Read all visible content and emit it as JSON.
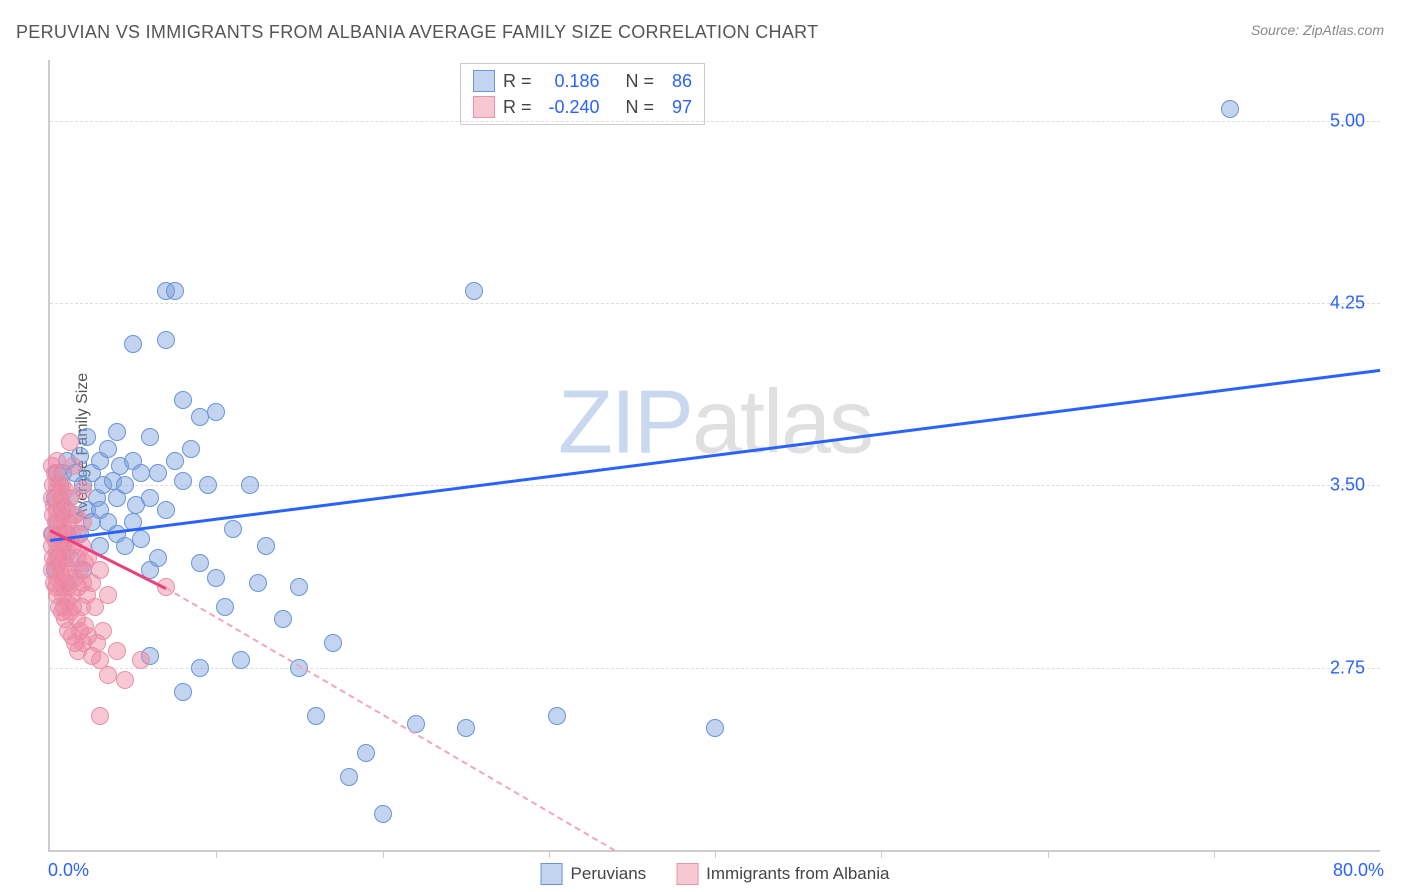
{
  "title": "PERUVIAN VS IMMIGRANTS FROM ALBANIA AVERAGE FAMILY SIZE CORRELATION CHART",
  "source": "Source: ZipAtlas.com",
  "ylabel": "Average Family Size",
  "watermark_zip": "ZIP",
  "watermark_atlas": "atlas",
  "chart": {
    "type": "scatter",
    "xlim": [
      0,
      80
    ],
    "ylim": [
      2.0,
      5.25
    ],
    "xmin_label": "0.0%",
    "xmax_label": "80.0%",
    "yticks": [
      2.75,
      3.5,
      4.25,
      5.0
    ],
    "ytick_labels": [
      "2.75",
      "3.50",
      "4.25",
      "5.00"
    ],
    "xtick_positions": [
      10,
      20,
      30,
      40,
      50,
      60,
      70
    ],
    "grid_color": "#dddddd",
    "axis_color": "#cccccc",
    "background_color": "#ffffff",
    "tick_label_color": "#2962ff",
    "title_color": "#555555"
  },
  "series": [
    {
      "name": "Peruvians",
      "fill_color": "rgba(120,160,220,0.45)",
      "stroke_color": "#6a95d8",
      "marker_radius": 8,
      "R_label": "R =",
      "R": "0.186",
      "N_label": "N =",
      "N": "86",
      "trend": {
        "x1": 0,
        "y1": 3.28,
        "x2": 80,
        "y2": 3.98,
        "color": "#2962ff",
        "width": 3,
        "dash": false
      },
      "points": [
        [
          0.2,
          3.3
        ],
        [
          0.3,
          3.15
        ],
        [
          0.3,
          3.45
        ],
        [
          0.4,
          3.55
        ],
        [
          0.5,
          3.2
        ],
        [
          0.5,
          3.35
        ],
        [
          0.6,
          3.5
        ],
        [
          0.7,
          3.4
        ],
        [
          0.8,
          3.25
        ],
        [
          0.8,
          3.55
        ],
        [
          1.0,
          3.1
        ],
        [
          1.0,
          3.6
        ],
        [
          1.0,
          3.3
        ],
        [
          1.2,
          3.45
        ],
        [
          1.2,
          3.2
        ],
        [
          1.5,
          3.55
        ],
        [
          1.5,
          3.38
        ],
        [
          1.8,
          3.3
        ],
        [
          1.8,
          3.62
        ],
        [
          2.0,
          3.5
        ],
        [
          2.0,
          3.15
        ],
        [
          2.2,
          3.4
        ],
        [
          2.2,
          3.7
        ],
        [
          2.5,
          3.55
        ],
        [
          2.5,
          3.35
        ],
        [
          2.8,
          3.45
        ],
        [
          3.0,
          3.25
        ],
        [
          3.0,
          3.6
        ],
        [
          3.0,
          3.4
        ],
        [
          3.2,
          3.5
        ],
        [
          3.5,
          3.65
        ],
        [
          3.5,
          3.35
        ],
        [
          3.8,
          3.52
        ],
        [
          4.0,
          3.3
        ],
        [
          4.0,
          3.72
        ],
        [
          4.0,
          3.45
        ],
        [
          4.2,
          3.58
        ],
        [
          4.5,
          3.25
        ],
        [
          4.5,
          3.5
        ],
        [
          5.0,
          3.35
        ],
        [
          5.0,
          3.6
        ],
        [
          5.0,
          4.08
        ],
        [
          5.2,
          3.42
        ],
        [
          5.5,
          3.28
        ],
        [
          5.5,
          3.55
        ],
        [
          6.0,
          3.15
        ],
        [
          6.0,
          3.45
        ],
        [
          6.0,
          3.7
        ],
        [
          6.5,
          3.2
        ],
        [
          6.5,
          3.55
        ],
        [
          7.0,
          4.1
        ],
        [
          7.0,
          3.4
        ],
        [
          7.5,
          3.6
        ],
        [
          8.0,
          3.52
        ],
        [
          8.0,
          3.85
        ],
        [
          8.5,
          3.65
        ],
        [
          9.0,
          3.18
        ],
        [
          9.0,
          3.78
        ],
        [
          9.5,
          3.5
        ],
        [
          10.0,
          3.8
        ],
        [
          10.0,
          3.12
        ],
        [
          10.5,
          3.0
        ],
        [
          7.0,
          4.3
        ],
        [
          7.5,
          4.3
        ],
        [
          11.0,
          3.32
        ],
        [
          12.0,
          3.5
        ],
        [
          12.5,
          3.1
        ],
        [
          13.0,
          3.25
        ],
        [
          14.0,
          2.95
        ],
        [
          15.0,
          2.75
        ],
        [
          16.0,
          2.55
        ],
        [
          17.0,
          2.85
        ],
        [
          8.0,
          2.65
        ],
        [
          9.0,
          2.75
        ],
        [
          6.0,
          2.8
        ],
        [
          11.5,
          2.78
        ],
        [
          15.0,
          3.08
        ],
        [
          18.0,
          2.3
        ],
        [
          19.0,
          2.4
        ],
        [
          20.0,
          2.15
        ],
        [
          22.0,
          2.52
        ],
        [
          25.0,
          2.5
        ],
        [
          25.5,
          4.3
        ],
        [
          30.5,
          2.55
        ],
        [
          40.0,
          2.5
        ],
        [
          71.0,
          5.05
        ]
      ]
    },
    {
      "name": "Immigrants from Albania",
      "fill_color": "rgba(240,130,160,0.45)",
      "stroke_color": "#e892ab",
      "marker_radius": 8,
      "R_label": "R =",
      "R": "-0.240",
      "N_label": "N =",
      "N": "97",
      "trend_solid": {
        "x1": 0,
        "y1": 3.32,
        "x2": 7.0,
        "y2": 3.08,
        "color": "#ec407a",
        "width": 3,
        "dash": false
      },
      "trend_dash": {
        "x1": 7.0,
        "y1": 3.08,
        "x2": 34.0,
        "y2": 2.0,
        "color": "#f4a6bb",
        "width": 2,
        "dash": true
      },
      "points": [
        [
          0.1,
          3.3
        ],
        [
          0.1,
          3.15
        ],
        [
          0.15,
          3.45
        ],
        [
          0.15,
          3.25
        ],
        [
          0.2,
          3.5
        ],
        [
          0.2,
          3.2
        ],
        [
          0.2,
          3.38
        ],
        [
          0.25,
          3.1
        ],
        [
          0.25,
          3.42
        ],
        [
          0.3,
          3.55
        ],
        [
          0.3,
          3.28
        ],
        [
          0.3,
          3.18
        ],
        [
          0.35,
          3.35
        ],
        [
          0.35,
          3.08
        ],
        [
          0.4,
          3.48
        ],
        [
          0.4,
          3.22
        ],
        [
          0.4,
          3.12
        ],
        [
          0.45,
          3.4
        ],
        [
          0.45,
          3.05
        ],
        [
          0.5,
          3.52
        ],
        [
          0.5,
          3.3
        ],
        [
          0.5,
          3.18
        ],
        [
          0.55,
          3.25
        ],
        [
          0.55,
          3.0
        ],
        [
          0.6,
          3.45
        ],
        [
          0.6,
          3.15
        ],
        [
          0.6,
          3.35
        ],
        [
          0.65,
          3.08
        ],
        [
          0.65,
          3.28
        ],
        [
          0.7,
          3.5
        ],
        [
          0.7,
          3.2
        ],
        [
          0.7,
          2.98
        ],
        [
          0.75,
          3.38
        ],
        [
          0.75,
          3.12
        ],
        [
          0.8,
          3.42
        ],
        [
          0.8,
          3.05
        ],
        [
          0.8,
          3.25
        ],
        [
          0.85,
          3.32
        ],
        [
          0.85,
          3.0
        ],
        [
          0.9,
          3.48
        ],
        [
          0.9,
          3.18
        ],
        [
          0.9,
          2.95
        ],
        [
          0.95,
          3.28
        ],
        [
          0.95,
          3.1
        ],
        [
          1.0,
          3.4
        ],
        [
          1.0,
          3.22
        ],
        [
          1.0,
          3.02
        ],
        [
          1.1,
          3.35
        ],
        [
          1.1,
          3.08
        ],
        [
          1.1,
          2.9
        ],
        [
          1.2,
          3.45
        ],
        [
          1.2,
          3.15
        ],
        [
          1.2,
          2.98
        ],
        [
          1.3,
          3.3
        ],
        [
          1.3,
          3.05
        ],
        [
          1.3,
          2.88
        ],
        [
          1.4,
          3.25
        ],
        [
          1.4,
          3.0
        ],
        [
          1.5,
          3.38
        ],
        [
          1.5,
          3.12
        ],
        [
          1.5,
          2.85
        ],
        [
          1.6,
          3.2
        ],
        [
          1.6,
          2.95
        ],
        [
          1.7,
          3.3
        ],
        [
          1.7,
          3.08
        ],
        [
          1.7,
          2.82
        ],
        [
          1.8,
          3.15
        ],
        [
          1.8,
          2.9
        ],
        [
          1.9,
          3.25
        ],
        [
          1.9,
          3.0
        ],
        [
          2.0,
          3.35
        ],
        [
          2.0,
          3.1
        ],
        [
          2.0,
          2.85
        ],
        [
          2.1,
          3.18
        ],
        [
          2.1,
          2.92
        ],
        [
          2.2,
          3.05
        ],
        [
          2.3,
          3.2
        ],
        [
          2.3,
          2.88
        ],
        [
          2.5,
          3.1
        ],
        [
          2.5,
          2.8
        ],
        [
          2.7,
          3.0
        ],
        [
          2.8,
          2.85
        ],
        [
          3.0,
          3.15
        ],
        [
          3.0,
          2.78
        ],
        [
          3.2,
          2.9
        ],
        [
          3.5,
          3.05
        ],
        [
          3.5,
          2.72
        ],
        [
          1.2,
          3.68
        ],
        [
          1.4,
          3.58
        ],
        [
          2.0,
          3.48
        ],
        [
          0.15,
          3.58
        ],
        [
          0.4,
          3.6
        ],
        [
          4.0,
          2.82
        ],
        [
          4.5,
          2.7
        ],
        [
          5.5,
          2.78
        ],
        [
          3.0,
          2.55
        ],
        [
          7.0,
          3.08
        ]
      ]
    }
  ],
  "legend_items": [
    {
      "label": "Peruvians",
      "fill": "rgba(120,160,220,0.45)",
      "stroke": "#6a95d8"
    },
    {
      "label": "Immigrants from Albania",
      "fill": "rgba(240,130,160,0.45)",
      "stroke": "#e892ab"
    }
  ]
}
